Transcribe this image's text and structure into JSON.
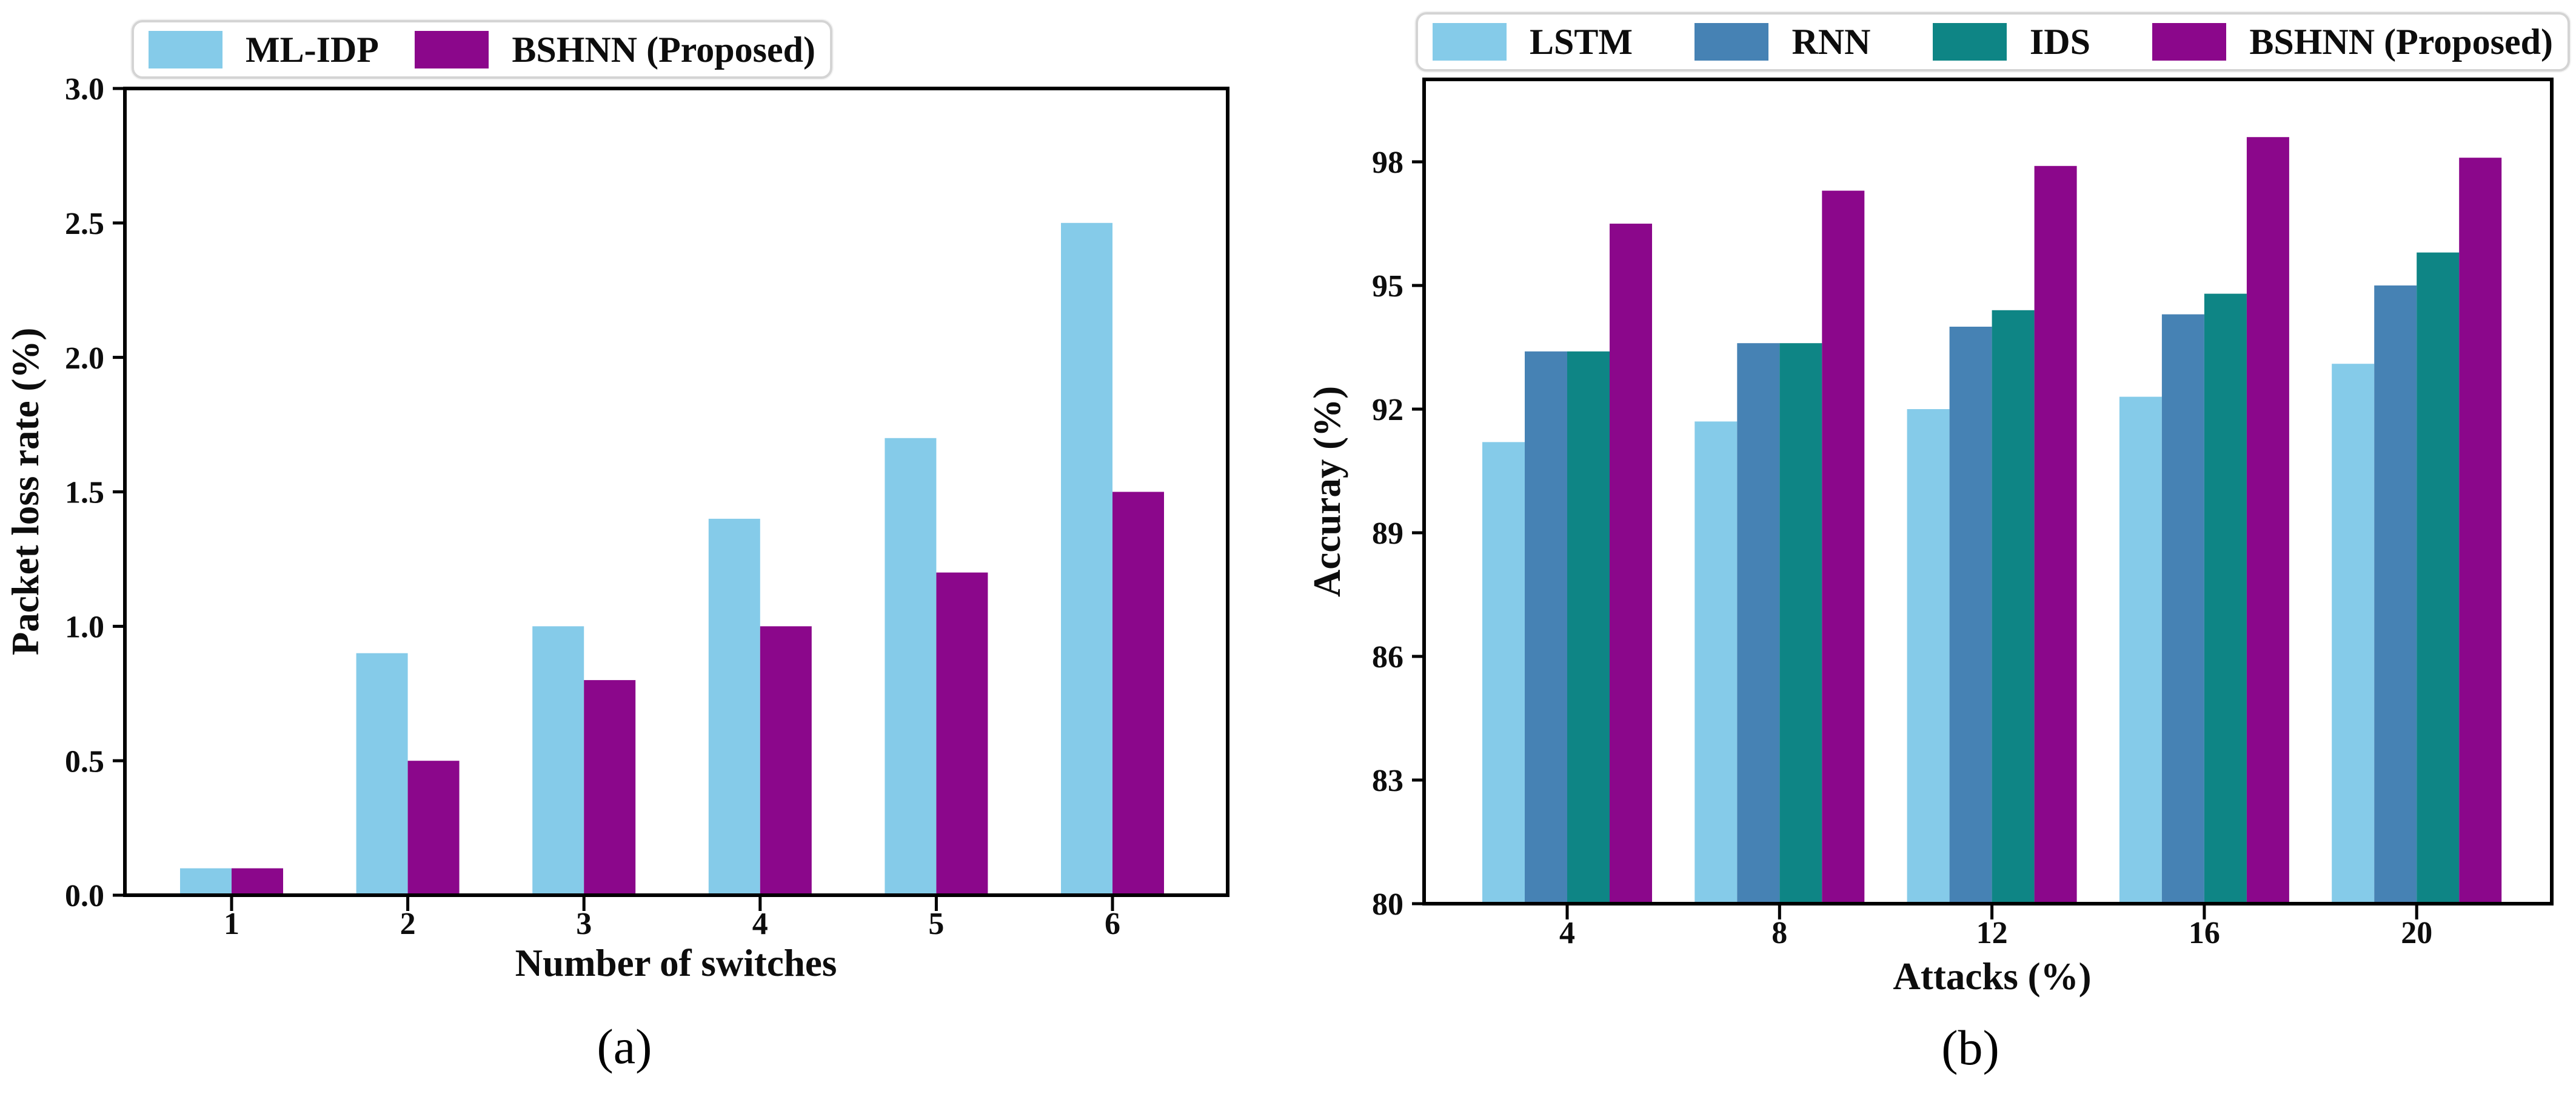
{
  "figure": {
    "background": "#ffffff",
    "captions": [
      "(a)",
      "(b)"
    ]
  },
  "chart_data": [
    {
      "type": "bar",
      "panel": "a",
      "caption": "(a)",
      "title": "",
      "xlabel": "Number of switches",
      "ylabel": "Packet loss rate (%)",
      "categories": [
        "1",
        "2",
        "3",
        "4",
        "5",
        "6"
      ],
      "series": [
        {
          "name": "ML-IDP",
          "color": "#85CBE9",
          "values": [
            0.1,
            0.9,
            1.0,
            1.4,
            1.7,
            2.5
          ]
        },
        {
          "name": "BSHNN (Proposed)",
          "color": "#8B078B",
          "values": [
            0.1,
            0.5,
            0.8,
            1.0,
            1.2,
            1.5
          ]
        }
      ],
      "ylim": [
        0,
        3.0
      ],
      "yticks": [
        0.0,
        0.5,
        1.0,
        1.5,
        2.0,
        2.5,
        3.0
      ],
      "ytick_decimals": 1,
      "grid": false,
      "legend_position": "top-left-above-axes"
    },
    {
      "type": "bar",
      "panel": "b",
      "caption": "(b)",
      "title": "",
      "xlabel": "Attacks (%)",
      "ylabel": "Accuray (%)",
      "categories": [
        "4",
        "8",
        "12",
        "16",
        "20"
      ],
      "series": [
        {
          "name": "LSTM",
          "color": "#85CBE9",
          "values": [
            91.2,
            91.7,
            92.0,
            92.3,
            93.1
          ]
        },
        {
          "name": "RNN",
          "color": "#4682B4",
          "values": [
            93.4,
            93.6,
            94.0,
            94.3,
            95.0
          ]
        },
        {
          "name": "IDS",
          "color": "#0E8585",
          "values": [
            93.4,
            93.6,
            94.4,
            94.8,
            95.8
          ]
        },
        {
          "name": "BSHNN (Proposed)",
          "color": "#8B078B",
          "values": [
            96.5,
            97.3,
            97.9,
            98.6,
            98.1
          ]
        }
      ],
      "ylim": [
        80,
        100
      ],
      "yticks": [
        80,
        83,
        86,
        89,
        92,
        95,
        98
      ],
      "ytick_decimals": 0,
      "grid": false,
      "legend_position": "top-above-axes"
    }
  ]
}
